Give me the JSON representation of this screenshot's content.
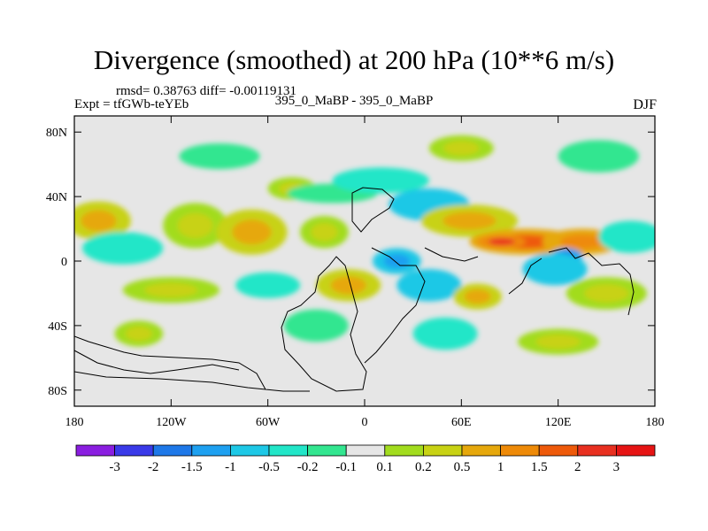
{
  "chart_data": {
    "type": "heatmap",
    "title": "Divergence (smoothed) at 200 hPa (10**6 m/s)",
    "stats_line": "rmsd= 0.38763 diff= -0.00119131",
    "experiment_line": "Expt = tfGWb-teYEb",
    "runs_line": "395_0_MaBP - 395_0_MaBP",
    "season": "DJF",
    "x_axis": {
      "range": [
        -180,
        180
      ],
      "ticks": [
        {
          "value": -180,
          "label": "180"
        },
        {
          "value": -120,
          "label": "120W"
        },
        {
          "value": -60,
          "label": "60W"
        },
        {
          "value": 0,
          "label": "0"
        },
        {
          "value": 60,
          "label": "60E"
        },
        {
          "value": 120,
          "label": "120E"
        },
        {
          "value": 180,
          "label": "180"
        }
      ]
    },
    "y_axis": {
      "range": [
        -90,
        90
      ],
      "ticks": [
        {
          "value": 80,
          "label": "80N"
        },
        {
          "value": 40,
          "label": "40N"
        },
        {
          "value": 0,
          "label": "0"
        },
        {
          "value": -40,
          "label": "40S"
        },
        {
          "value": -80,
          "label": "80S"
        }
      ]
    },
    "colorbar": {
      "labels": [
        "-3",
        "-2",
        "-1.5",
        "-1",
        "-0.5",
        "-0.2",
        "-0.1",
        "0.1",
        "0.2",
        "0.5",
        "1",
        "1.5",
        "2",
        "3"
      ],
      "colors": [
        "#8a1ee0",
        "#3a3ae8",
        "#1e78e8",
        "#1ea0f0",
        "#1ec8e6",
        "#22e6c8",
        "#33e690",
        "#e6e6e6",
        "#a2dc1e",
        "#c8d214",
        "#e6a80c",
        "#ee8a08",
        "#ee5a0a",
        "#e83020",
        "#e61414"
      ]
    },
    "anomaly_features": [
      {
        "lon": -165,
        "lat": 25,
        "value": 0.5,
        "rx": 20,
        "ry": 12
      },
      {
        "lon": -150,
        "lat": 8,
        "value": -0.5,
        "rx": 25,
        "ry": 10
      },
      {
        "lon": -105,
        "lat": 22,
        "value": 0.2,
        "rx": 20,
        "ry": 14
      },
      {
        "lon": -70,
        "lat": 18,
        "value": 0.5,
        "rx": 22,
        "ry": 14
      },
      {
        "lon": -25,
        "lat": 18,
        "value": 0.2,
        "rx": 15,
        "ry": 10
      },
      {
        "lon": -45,
        "lat": 45,
        "value": 0.2,
        "rx": 15,
        "ry": 7
      },
      {
        "lon": -20,
        "lat": 42,
        "value": -0.2,
        "rx": 28,
        "ry": 6
      },
      {
        "lon": 10,
        "lat": 50,
        "value": -0.5,
        "rx": 30,
        "ry": 8
      },
      {
        "lon": 40,
        "lat": 35,
        "value": -1,
        "rx": 25,
        "ry": 10
      },
      {
        "lon": 65,
        "lat": 25,
        "value": 0.5,
        "rx": 30,
        "ry": 10
      },
      {
        "lon": 100,
        "lat": 12,
        "value": 1.5,
        "rx": 35,
        "ry": 8
      },
      {
        "lon": 85,
        "lat": 12,
        "value": 2,
        "rx": 15,
        "ry": 4
      },
      {
        "lon": 135,
        "lat": 12,
        "value": 1,
        "rx": 25,
        "ry": 8
      },
      {
        "lon": 125,
        "lat": 3,
        "value": -2,
        "rx": 10,
        "ry": 5
      },
      {
        "lon": 118,
        "lat": -5,
        "value": -1,
        "rx": 20,
        "ry": 10
      },
      {
        "lon": 165,
        "lat": 15,
        "value": -0.5,
        "rx": 20,
        "ry": 10
      },
      {
        "lon": 20,
        "lat": 0,
        "value": -1.5,
        "rx": 15,
        "ry": 8
      },
      {
        "lon": 40,
        "lat": -15,
        "value": -1,
        "rx": 20,
        "ry": 10
      },
      {
        "lon": -10,
        "lat": -15,
        "value": 0.5,
        "rx": 20,
        "ry": 10
      },
      {
        "lon": -60,
        "lat": -15,
        "value": -0.5,
        "rx": 20,
        "ry": 8
      },
      {
        "lon": -120,
        "lat": -18,
        "value": 0.2,
        "rx": 30,
        "ry": 8
      },
      {
        "lon": 70,
        "lat": -22,
        "value": 0.5,
        "rx": 15,
        "ry": 8
      },
      {
        "lon": 150,
        "lat": -20,
        "value": 0.2,
        "rx": 25,
        "ry": 10
      },
      {
        "lon": -140,
        "lat": -45,
        "value": 0.2,
        "rx": 15,
        "ry": 8
      },
      {
        "lon": -30,
        "lat": -40,
        "value": -0.2,
        "rx": 20,
        "ry": 10
      },
      {
        "lon": 50,
        "lat": -45,
        "value": -0.5,
        "rx": 20,
        "ry": 10
      },
      {
        "lon": 120,
        "lat": -50,
        "value": 0.2,
        "rx": 25,
        "ry": 8
      },
      {
        "lon": -90,
        "lat": 65,
        "value": -0.2,
        "rx": 25,
        "ry": 8
      },
      {
        "lon": 60,
        "lat": 70,
        "value": 0.2,
        "rx": 20,
        "ry": 8
      },
      {
        "lon": 145,
        "lat": 65,
        "value": -0.2,
        "rx": 25,
        "ry": 10
      }
    ]
  }
}
